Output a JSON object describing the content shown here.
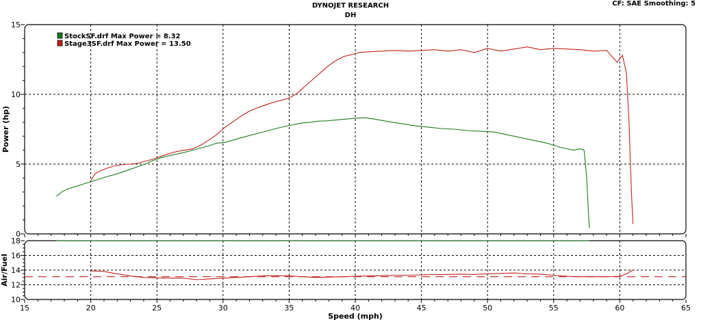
{
  "header": {
    "title": "DYNOJET RESEARCH",
    "subtitle": "DH",
    "cf_label": "CF: SAE  Smoothing: 5"
  },
  "chart_data": [
    {
      "type": "line",
      "ylabel": "Power (hp)",
      "xlabel": "",
      "xlim": [
        15,
        65
      ],
      "ylim": [
        0,
        15
      ],
      "y_ticks": [
        "0",
        "5",
        "10",
        "15"
      ],
      "grid": true,
      "legend_position": "top-left",
      "series": [
        {
          "name": "StockSF.drf Max Power = 8.32",
          "color": "#1a7a1a",
          "x": [
            17.4,
            17.8,
            18.2,
            18.7,
            19.2,
            19.7,
            20.2,
            20.7,
            21.2,
            21.8,
            22.3,
            22.9,
            23.5,
            24.1,
            24.7,
            25.3,
            25.9,
            26.5,
            27.1,
            27.7,
            28.3,
            28.9,
            29.5,
            30.1,
            30.7,
            31.2,
            31.8,
            32.4,
            33.0,
            33.6,
            34.2,
            34.8,
            35.4,
            36.0,
            36.6,
            37.2,
            37.8,
            38.4,
            39.0,
            39.6,
            40.2,
            40.8,
            41.6,
            42.5,
            43.5,
            44.5,
            45.5,
            46.5,
            47.5,
            48.5,
            49.5,
            50.5,
            51.5,
            52.5,
            53.5,
            54.5,
            55.0,
            55.5,
            56.0,
            56.5,
            57.0,
            57.3,
            57.5,
            57.6,
            57.7
          ],
          "values": [
            2.7,
            3.0,
            3.2,
            3.35,
            3.5,
            3.65,
            3.8,
            3.95,
            4.1,
            4.25,
            4.4,
            4.6,
            4.8,
            5.0,
            5.25,
            5.45,
            5.6,
            5.72,
            5.85,
            6.0,
            6.15,
            6.3,
            6.5,
            6.55,
            6.7,
            6.85,
            7.0,
            7.15,
            7.3,
            7.45,
            7.6,
            7.72,
            7.85,
            7.95,
            8.0,
            8.08,
            8.1,
            8.15,
            8.2,
            8.25,
            8.3,
            8.32,
            8.2,
            8.05,
            7.9,
            7.75,
            7.65,
            7.55,
            7.5,
            7.4,
            7.35,
            7.3,
            7.1,
            6.9,
            6.7,
            6.5,
            6.35,
            6.2,
            6.1,
            6.0,
            6.1,
            6.0,
            4.0,
            2.0,
            0.4
          ]
        },
        {
          "name": "Stage3SF.drf Max Power = 13.50",
          "color": "#c0201c",
          "x": [
            20.0,
            20.3,
            20.7,
            21.2,
            21.7,
            22.3,
            22.9,
            23.5,
            24.1,
            24.7,
            25.3,
            25.9,
            26.5,
            27.1,
            27.7,
            28.3,
            28.9,
            29.5,
            30.1,
            30.7,
            31.3,
            31.9,
            32.5,
            33.1,
            33.7,
            34.3,
            34.9,
            35.5,
            36.1,
            36.7,
            37.3,
            37.9,
            38.5,
            39.1,
            39.7,
            40.3,
            41.0,
            42.0,
            43.0,
            44.0,
            45.0,
            46.0,
            47.0,
            48.0,
            49.0,
            50.0,
            51.0,
            52.0,
            53.0,
            54.0,
            55.0,
            56.0,
            57.0,
            58.0,
            59.0,
            59.8,
            60.2,
            60.5,
            60.7,
            60.8,
            60.9,
            61.0
          ],
          "values": [
            3.8,
            4.3,
            4.5,
            4.7,
            4.85,
            4.95,
            5.0,
            5.05,
            5.2,
            5.35,
            5.55,
            5.75,
            5.9,
            6.0,
            6.1,
            6.35,
            6.7,
            7.1,
            7.6,
            8.0,
            8.4,
            8.75,
            9.0,
            9.2,
            9.4,
            9.55,
            9.7,
            10.0,
            10.5,
            11.0,
            11.5,
            12.0,
            12.4,
            12.7,
            12.85,
            13.0,
            13.05,
            13.1,
            13.15,
            13.1,
            13.15,
            13.2,
            13.1,
            13.2,
            13.0,
            13.3,
            13.1,
            13.25,
            13.4,
            13.2,
            13.3,
            13.25,
            13.2,
            13.1,
            13.15,
            12.3,
            12.8,
            11.5,
            8.0,
            5.0,
            2.5,
            0.7
          ]
        }
      ]
    },
    {
      "type": "line",
      "ylabel": "Air/Fuel",
      "xlabel": "Speed (mph)",
      "xlim": [
        15,
        65
      ],
      "ylim": [
        10,
        18
      ],
      "y_ticks": [
        "10",
        "12",
        "14",
        "16",
        "18"
      ],
      "x_ticks": [
        "15",
        "20",
        "25",
        "30",
        "35",
        "40",
        "45",
        "50",
        "55",
        "60",
        "65"
      ],
      "grid": true,
      "series": [
        {
          "color": "#1a7a1a",
          "x": [
            17.4,
            57.7
          ],
          "values": [
            18.0,
            18.0
          ]
        },
        {
          "color": "#c0201c",
          "x": [
            20.0,
            21.0,
            22.0,
            23.0,
            24.0,
            25.0,
            26.0,
            27.0,
            28.0,
            29.0,
            30.0,
            31.0,
            32.0,
            33.0,
            34.0,
            35.0,
            36.0,
            37.0,
            38.0,
            39.0,
            40.0,
            41.0,
            42.0,
            43.0,
            44.0,
            45.0,
            46.0,
            47.0,
            48.0,
            49.0,
            50.0,
            51.0,
            52.0,
            53.0,
            54.0,
            55.0,
            56.0,
            57.0,
            58.0,
            59.0,
            60.0,
            60.5,
            61.0
          ],
          "values": [
            13.9,
            13.8,
            13.5,
            13.2,
            13.0,
            12.95,
            12.9,
            12.9,
            12.7,
            12.8,
            12.9,
            13.0,
            13.1,
            13.2,
            13.25,
            13.2,
            13.1,
            13.0,
            13.05,
            13.1,
            13.15,
            13.2,
            13.25,
            13.3,
            13.3,
            13.35,
            13.4,
            13.4,
            13.45,
            13.4,
            13.5,
            13.55,
            13.6,
            13.5,
            13.45,
            13.3,
            13.15,
            13.1,
            13.1,
            13.1,
            13.15,
            13.5,
            14.0
          ]
        }
      ],
      "reference_line": {
        "y": 13.1,
        "x_start": 15,
        "x_end": 65,
        "color": "#c0201c",
        "style": "dashed"
      }
    }
  ]
}
